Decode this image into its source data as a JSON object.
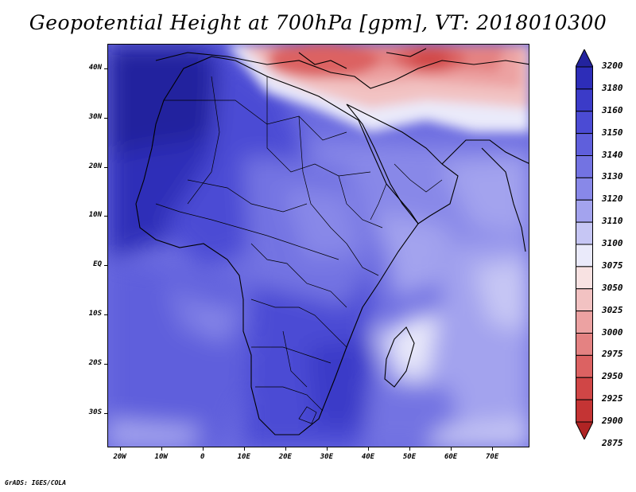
{
  "title": "Geopotential Height at 700hPa [gpm], VT: 2018010300",
  "credit": "GrADS: IGES/COLA",
  "map": {
    "lon_range": [
      -23,
      79
    ],
    "lat_range": [
      -37,
      45
    ],
    "lat_labels": [
      {
        "lat": 40,
        "text": "40N"
      },
      {
        "lat": 30,
        "text": "30N"
      },
      {
        "lat": 20,
        "text": "20N"
      },
      {
        "lat": 10,
        "text": "10N"
      },
      {
        "lat": 0,
        "text": "EQ"
      },
      {
        "lat": -10,
        "text": "10S"
      },
      {
        "lat": -20,
        "text": "20S"
      },
      {
        "lat": -30,
        "text": "30S"
      }
    ],
    "lon_labels": [
      {
        "lon": -20,
        "text": "20W"
      },
      {
        "lon": -10,
        "text": "10W"
      },
      {
        "lon": 0,
        "text": "0"
      },
      {
        "lon": 10,
        "text": "10E"
      },
      {
        "lon": 20,
        "text": "20E"
      },
      {
        "lon": 30,
        "text": "30E"
      },
      {
        "lon": 40,
        "text": "40E"
      },
      {
        "lon": 50,
        "text": "50E"
      },
      {
        "lon": 60,
        "text": "60E"
      },
      {
        "lon": 70,
        "text": "70E"
      }
    ]
  },
  "colorbar": {
    "levels": [
      "3200",
      "3180",
      "3160",
      "3150",
      "3140",
      "3130",
      "3120",
      "3110",
      "3100",
      "3075",
      "3050",
      "3025",
      "3000",
      "2975",
      "2950",
      "2925",
      "2900",
      "2875"
    ],
    "colors": [
      "#23239e",
      "#2d2db8",
      "#3b3bc8",
      "#4b4bd4",
      "#5f5fdc",
      "#7373e2",
      "#8888e8",
      "#a3a3ee",
      "#c6c6f4",
      "#eaeafa",
      "#f8e2e2",
      "#f2c2c2",
      "#eca2a2",
      "#e48282",
      "#dc6262",
      "#d04646",
      "#c43434",
      "#b02424"
    ]
  }
}
